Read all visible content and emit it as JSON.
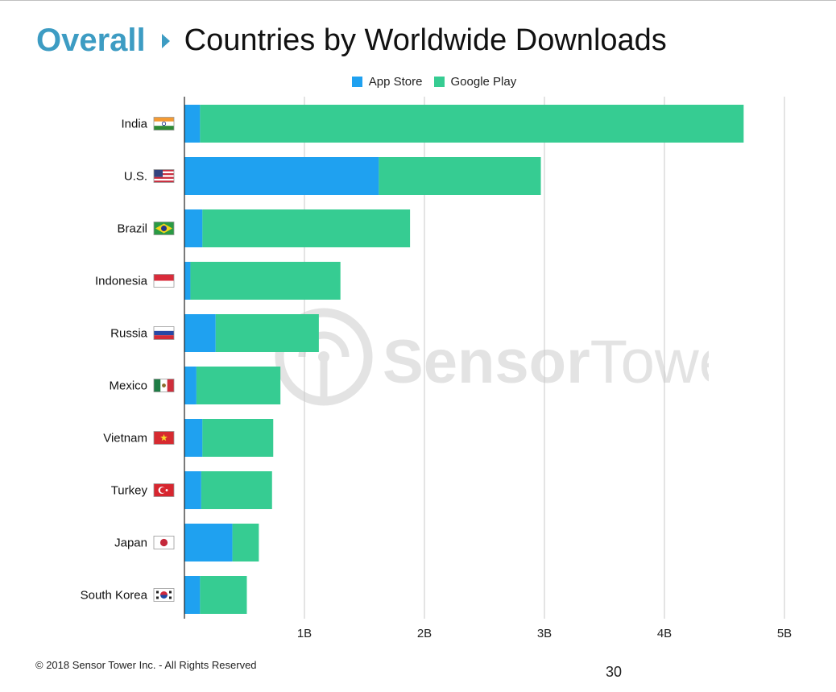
{
  "header": {
    "section": "Overall",
    "title": "Countries by Worldwide Downloads"
  },
  "legend": [
    {
      "label": "App Store",
      "color": "#1fa1f0"
    },
    {
      "label": "Google Play",
      "color": "#36cc92"
    }
  ],
  "watermark": {
    "brand_a": "Sensor",
    "brand_b": "Tower"
  },
  "footer": {
    "copyright": "© 2018 Sensor Tower Inc. - All Rights Reserved",
    "page_number": "30"
  },
  "chart_data": {
    "type": "bar",
    "orientation": "horizontal",
    "stacked": true,
    "categories": [
      "India",
      "U.S.",
      "Brazil",
      "Indonesia",
      "Russia",
      "Mexico",
      "Vietnam",
      "Turkey",
      "Japan",
      "South Korea"
    ],
    "flags": [
      "india",
      "us",
      "brazil",
      "indonesia",
      "russia",
      "mexico",
      "vietnam",
      "turkey",
      "japan",
      "south-korea"
    ],
    "series": [
      {
        "name": "App Store",
        "color": "#1fa1f0",
        "values": [
          0.13,
          1.62,
          0.15,
          0.05,
          0.26,
          0.1,
          0.15,
          0.14,
          0.4,
          0.13
        ]
      },
      {
        "name": "Google Play",
        "color": "#36cc92",
        "values": [
          4.53,
          1.35,
          1.73,
          1.25,
          0.86,
          0.7,
          0.59,
          0.59,
          0.22,
          0.39
        ]
      }
    ],
    "xlim": [
      0,
      5
    ],
    "xtick_labels": [
      "1B",
      "2B",
      "3B",
      "4B",
      "5B"
    ],
    "xtick_values": [
      1,
      2,
      3,
      4,
      5
    ],
    "grid": true,
    "legend_position": "top-center"
  }
}
